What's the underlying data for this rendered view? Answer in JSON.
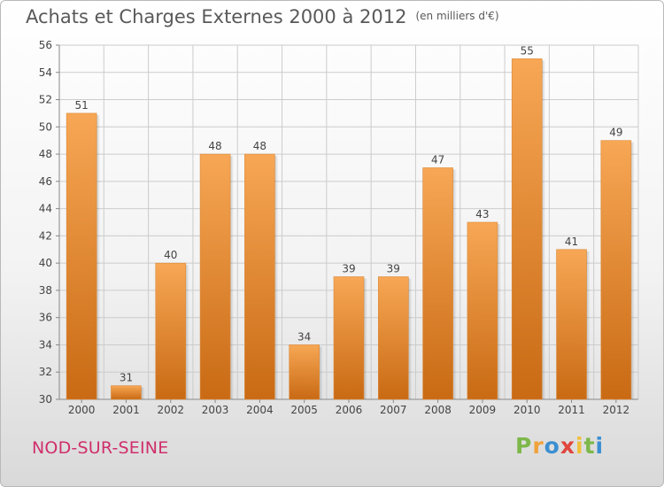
{
  "chart_title": "Achats et Charges Externes 2000 à 2012",
  "chart_unit": "(en milliers d'€)",
  "commune_name": "NOD-SUR-SEINE",
  "logo": {
    "letters": [
      "P",
      "r",
      "o",
      "x",
      "i",
      "t",
      "i"
    ],
    "colors": [
      "#7db84a",
      "#f0a23b",
      "#3b8fd1",
      "#e0453e",
      "#f0c03b",
      "#7db84a",
      "#3b8fd1"
    ]
  },
  "colors": {
    "bar_top": "#f7a755",
    "bar_bottom": "#c96a14",
    "grid": "#cccccc",
    "axis_text": "#444444",
    "commune": "#cf2f6b"
  },
  "chart_data": {
    "type": "bar",
    "categories": [
      "2000",
      "2001",
      "2002",
      "2003",
      "2004",
      "2005",
      "2006",
      "2007",
      "2008",
      "2009",
      "2010",
      "2011",
      "2012"
    ],
    "values": [
      51,
      31,
      40,
      48,
      48,
      34,
      39,
      39,
      47,
      43,
      55,
      41,
      49
    ],
    "ylim": [
      30,
      56
    ],
    "yticks": [
      30,
      32,
      34,
      36,
      38,
      40,
      42,
      44,
      46,
      48,
      50,
      52,
      54,
      56
    ],
    "grid": true,
    "data_labels": true
  }
}
